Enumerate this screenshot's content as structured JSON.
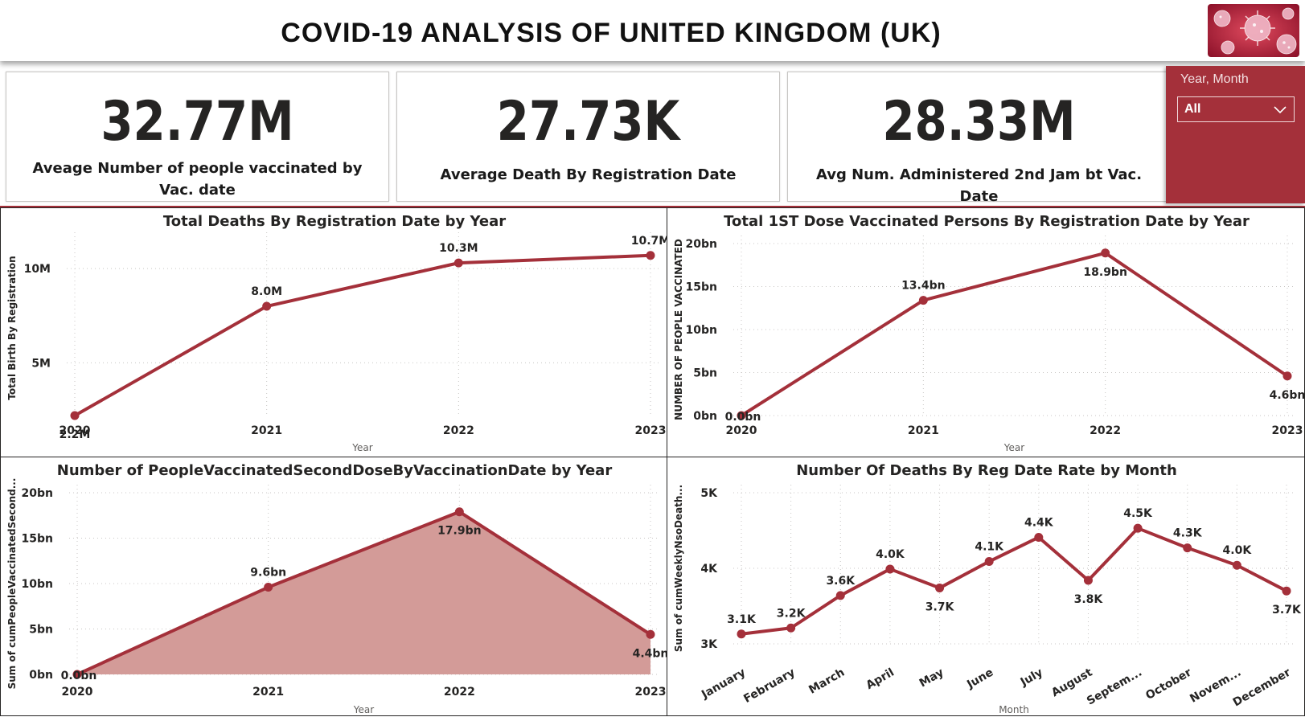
{
  "header": {
    "title": "COVID-19 ANALYSIS OF UNITED KINGDOM (UK)"
  },
  "colors": {
    "accent": "#a4303a",
    "area_fill": "#d39b98",
    "text": "#252423"
  },
  "kpis": [
    {
      "value": "32.77M",
      "label": "Aveage Number of people vaccinated by Vac. date"
    },
    {
      "value": "27.73K",
      "label": "Average Death By Registration Date"
    },
    {
      "value": "28.33M",
      "label": "Avg Num. Administered 2nd Jam bt Vac. Date"
    }
  ],
  "slicer": {
    "title": "Year, Month",
    "value": "All",
    "icon": "chevron-down-icon"
  },
  "chart_data": [
    {
      "type": "line",
      "title": "Total Deaths By Registration Date by Year",
      "xlabel": "Year",
      "ylabel": "Total Birth By Registration",
      "x": [
        "2020",
        "2021",
        "2022",
        "2023"
      ],
      "values": [
        2.2,
        8.0,
        10.3,
        10.7
      ],
      "data_labels": [
        "2.2M",
        "8.0M",
        "10.3M",
        "10.7M"
      ],
      "ylim": [
        2.2,
        11.5
      ],
      "yticks": [
        5,
        10
      ],
      "ytick_labels": [
        "5M",
        "10M"
      ],
      "label_positions": [
        "below",
        "above",
        "above",
        "above"
      ],
      "grid": true
    },
    {
      "type": "line",
      "title": "Total 1ST Dose Vaccinated Persons By Registration Date by Year",
      "xlabel": "Year",
      "ylabel": "NUMBER OF PEOPLE VACCINATED",
      "x": [
        "2020",
        "2021",
        "2022",
        "2023"
      ],
      "values": [
        0.0,
        13.4,
        18.9,
        4.6
      ],
      "data_labels": [
        "0.0bn",
        "13.4bn",
        "18.9bn",
        "4.6bn"
      ],
      "ylim": [
        0,
        20
      ],
      "yticks": [
        0,
        5,
        10,
        15,
        20
      ],
      "ytick_labels": [
        "0bn",
        "5bn",
        "10bn",
        "15bn",
        "20bn"
      ],
      "label_positions": [
        "right",
        "above",
        "below",
        "below"
      ],
      "grid": true
    },
    {
      "type": "area",
      "title": "Number of PeopleVaccinatedSecondDoseByVaccinationDate by Year",
      "xlabel": "Year",
      "ylabel": "Sum of cumPeopleVaccinatedSecond...",
      "x": [
        "2020",
        "2021",
        "2022",
        "2023"
      ],
      "values": [
        0.0,
        9.6,
        17.9,
        4.4
      ],
      "data_labels": [
        "0.0bn",
        "9.6bn",
        "17.9bn",
        "4.4bn"
      ],
      "ylim": [
        0,
        20
      ],
      "yticks": [
        0,
        5,
        10,
        15,
        20
      ],
      "ytick_labels": [
        "0bn",
        "5bn",
        "10bn",
        "15bn",
        "20bn"
      ],
      "label_positions": [
        "right",
        "above",
        "below",
        "below"
      ],
      "grid": true
    },
    {
      "type": "line",
      "title": "Number Of Deaths By Reg Date Rate by Month",
      "xlabel": "Month",
      "ylabel": "Sum of cumWeeklyNsoDeath...",
      "x": [
        "January",
        "February",
        "March",
        "April",
        "May",
        "June",
        "July",
        "August",
        "Septem...",
        "October",
        "Novem...",
        "December"
      ],
      "values": [
        3.13,
        3.21,
        3.64,
        3.99,
        3.74,
        4.09,
        4.41,
        3.84,
        4.53,
        4.27,
        4.04,
        3.7
      ],
      "data_labels": [
        "3.1K",
        "3.2K",
        "3.6K",
        "4.0K",
        "3.7K",
        "4.1K",
        "4.4K",
        "3.8K",
        "4.5K",
        "4.3K",
        "4.0K",
        "3.7K"
      ],
      "ylim": [
        3,
        5
      ],
      "yticks": [
        3,
        4,
        5
      ],
      "ytick_labels": [
        "3K",
        "4K",
        "5K"
      ],
      "label_positions": [
        "above",
        "above",
        "above",
        "above",
        "below",
        "above",
        "above",
        "below",
        "above",
        "above",
        "above",
        "below"
      ],
      "grid": true
    }
  ]
}
